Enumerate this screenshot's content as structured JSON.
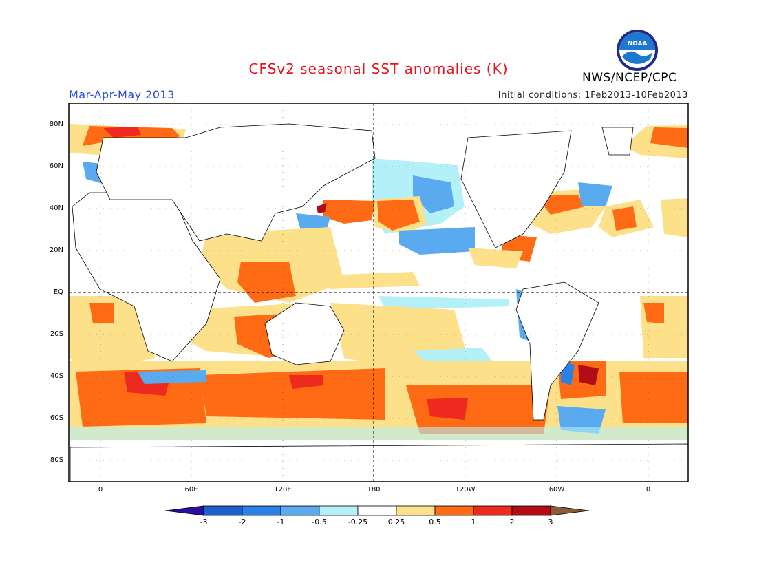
{
  "header": {
    "title": "CFSv2 seasonal SST anomalies (K)",
    "period": "Mar-Apr-May 2013",
    "initial_conditions": "Initial conditions: 1Feb2013-10Feb2013",
    "organization": "NWS/NCEP/CPC",
    "logo_text": "NOAA"
  },
  "map": {
    "lat_labels": [
      "80N",
      "60N",
      "40N",
      "20N",
      "EQ",
      "20S",
      "40S",
      "60S",
      "80S"
    ],
    "lon_labels": [
      "0",
      "60E",
      "120E",
      "180",
      "120W",
      "60W",
      "0"
    ]
  },
  "colorbar": {
    "labels": [
      "-3",
      "-2",
      "-1",
      "-0.5",
      "-0.25",
      "0.25",
      "0.5",
      "1",
      "2",
      "3"
    ],
    "colors": [
      "#2a0ea0",
      "#1e5fd0",
      "#2b82e6",
      "#5aaaf0",
      "#b4f0f8",
      "#ffffff",
      "#fde08a",
      "#ff6a14",
      "#ee2a1e",
      "#b40c14",
      "#8b5a3c"
    ]
  }
}
